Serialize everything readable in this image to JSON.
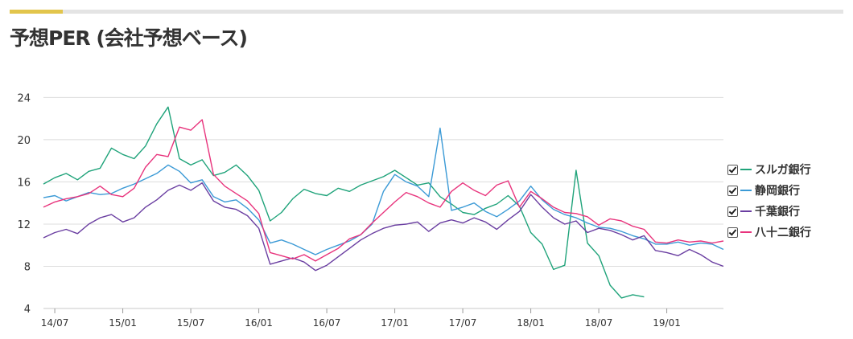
{
  "title": "予想PER (会社予想ベース)",
  "chart_data": {
    "type": "line",
    "title": "予想PER (会社予想ベース)",
    "x_start": "2014-06",
    "x_end": "2019-06",
    "x_ticks": [
      "14/07",
      "15/01",
      "15/07",
      "16/01",
      "16/07",
      "17/01",
      "17/07",
      "18/01",
      "18/07",
      "19/01"
    ],
    "y_ticks": [
      4,
      8,
      12,
      16,
      20,
      24
    ],
    "ylim": [
      4,
      27
    ],
    "grid": "horizontal",
    "legend_position": "right",
    "series": [
      {
        "name": "スルガ銀行",
        "color": "#1fa37a",
        "points": [
          [
            "2014-06",
            15.8
          ],
          [
            "2014-07",
            16.4
          ],
          [
            "2014-08",
            16.8
          ],
          [
            "2014-09",
            16.2
          ],
          [
            "2014-10",
            17.0
          ],
          [
            "2014-11",
            17.3
          ],
          [
            "2014-12",
            19.2
          ],
          [
            "2015-01",
            18.6
          ],
          [
            "2015-02",
            18.2
          ],
          [
            "2015-03",
            19.4
          ],
          [
            "2015-04",
            21.5
          ],
          [
            "2015-05",
            23.1
          ],
          [
            "2015-06",
            18.2
          ],
          [
            "2015-07",
            17.6
          ],
          [
            "2015-08",
            18.1
          ],
          [
            "2015-09",
            16.6
          ],
          [
            "2015-10",
            16.9
          ],
          [
            "2015-11",
            17.6
          ],
          [
            "2015-12",
            16.6
          ],
          [
            "2016-01",
            15.2
          ],
          [
            "2016-02",
            12.3
          ],
          [
            "2016-03",
            13.1
          ],
          [
            "2016-04",
            14.4
          ],
          [
            "2016-05",
            15.3
          ],
          [
            "2016-06",
            14.9
          ],
          [
            "2016-07",
            14.7
          ],
          [
            "2016-08",
            15.4
          ],
          [
            "2016-09",
            15.1
          ],
          [
            "2016-10",
            15.7
          ],
          [
            "2016-11",
            16.1
          ],
          [
            "2016-12",
            16.5
          ],
          [
            "2017-01",
            17.1
          ],
          [
            "2017-02",
            16.4
          ],
          [
            "2017-03",
            15.7
          ],
          [
            "2017-04",
            15.9
          ],
          [
            "2017-05",
            14.6
          ],
          [
            "2017-06",
            13.9
          ],
          [
            "2017-07",
            13.1
          ],
          [
            "2017-08",
            12.9
          ],
          [
            "2017-09",
            13.5
          ],
          [
            "2017-10",
            13.9
          ],
          [
            "2017-11",
            14.7
          ],
          [
            "2017-12",
            13.7
          ],
          [
            "2018-01",
            11.2
          ],
          [
            "2018-02",
            10.1
          ],
          [
            "2018-03",
            7.7
          ],
          [
            "2018-04",
            8.1
          ],
          [
            "2018-05",
            17.1
          ],
          [
            "2018-06",
            10.2
          ],
          [
            "2018-07",
            9.0
          ],
          [
            "2018-08",
            6.2
          ],
          [
            "2018-09",
            5.0
          ],
          [
            "2018-10",
            5.3
          ],
          [
            "2018-11",
            5.1
          ]
        ]
      },
      {
        "name": "静岡銀行",
        "color": "#3b9ad6",
        "points": [
          [
            "2014-06",
            14.5
          ],
          [
            "2014-07",
            14.7
          ],
          [
            "2014-08",
            14.2
          ],
          [
            "2014-09",
            14.6
          ],
          [
            "2014-10",
            15.0
          ],
          [
            "2014-11",
            14.8
          ],
          [
            "2014-12",
            14.9
          ],
          [
            "2015-01",
            15.4
          ],
          [
            "2015-02",
            15.8
          ],
          [
            "2015-03",
            16.3
          ],
          [
            "2015-04",
            16.8
          ],
          [
            "2015-05",
            17.6
          ],
          [
            "2015-06",
            17.0
          ],
          [
            "2015-07",
            15.9
          ],
          [
            "2015-08",
            16.2
          ],
          [
            "2015-09",
            14.6
          ],
          [
            "2015-10",
            14.1
          ],
          [
            "2015-11",
            14.3
          ],
          [
            "2015-12",
            13.5
          ],
          [
            "2016-01",
            12.4
          ],
          [
            "2016-02",
            10.2
          ],
          [
            "2016-03",
            10.5
          ],
          [
            "2016-04",
            10.1
          ],
          [
            "2016-05",
            9.6
          ],
          [
            "2016-06",
            9.1
          ],
          [
            "2016-07",
            9.6
          ],
          [
            "2016-08",
            10.0
          ],
          [
            "2016-09",
            10.4
          ],
          [
            "2016-10",
            11.0
          ],
          [
            "2016-11",
            12.0
          ],
          [
            "2016-12",
            15.1
          ],
          [
            "2017-01",
            16.7
          ],
          [
            "2017-02",
            16.0
          ],
          [
            "2017-03",
            15.6
          ],
          [
            "2017-04",
            14.6
          ],
          [
            "2017-05",
            21.1
          ],
          [
            "2017-06",
            13.3
          ],
          [
            "2017-07",
            13.6
          ],
          [
            "2017-08",
            14.0
          ],
          [
            "2017-09",
            13.2
          ],
          [
            "2017-10",
            12.7
          ],
          [
            "2017-11",
            13.4
          ],
          [
            "2017-12",
            14.2
          ],
          [
            "2018-01",
            15.6
          ],
          [
            "2018-02",
            14.3
          ],
          [
            "2018-03",
            13.4
          ],
          [
            "2018-04",
            12.9
          ],
          [
            "2018-05",
            12.6
          ],
          [
            "2018-06",
            12.1
          ],
          [
            "2018-07",
            11.7
          ],
          [
            "2018-08",
            11.6
          ],
          [
            "2018-09",
            11.3
          ],
          [
            "2018-10",
            10.9
          ],
          [
            "2018-11",
            10.6
          ],
          [
            "2018-12",
            10.1
          ],
          [
            "2019-01",
            10.1
          ],
          [
            "2019-02",
            10.3
          ],
          [
            "2019-03",
            10.0
          ],
          [
            "2019-04",
            10.2
          ],
          [
            "2019-05",
            10.1
          ],
          [
            "2019-06",
            9.6
          ]
        ]
      },
      {
        "name": "千葉銀行",
        "color": "#6a3ea1",
        "points": [
          [
            "2014-06",
            10.7
          ],
          [
            "2014-07",
            11.2
          ],
          [
            "2014-08",
            11.5
          ],
          [
            "2014-09",
            11.1
          ],
          [
            "2014-10",
            12.0
          ],
          [
            "2014-11",
            12.6
          ],
          [
            "2014-12",
            12.9
          ],
          [
            "2015-01",
            12.2
          ],
          [
            "2015-02",
            12.6
          ],
          [
            "2015-03",
            13.6
          ],
          [
            "2015-04",
            14.3
          ],
          [
            "2015-05",
            15.2
          ],
          [
            "2015-06",
            15.7
          ],
          [
            "2015-07",
            15.2
          ],
          [
            "2015-08",
            15.9
          ],
          [
            "2015-09",
            14.2
          ],
          [
            "2015-10",
            13.6
          ],
          [
            "2015-11",
            13.4
          ],
          [
            "2015-12",
            12.8
          ],
          [
            "2016-01",
            11.6
          ],
          [
            "2016-02",
            8.2
          ],
          [
            "2016-03",
            8.5
          ],
          [
            "2016-04",
            8.8
          ],
          [
            "2016-05",
            8.4
          ],
          [
            "2016-06",
            7.6
          ],
          [
            "2016-07",
            8.1
          ],
          [
            "2016-08",
            8.9
          ],
          [
            "2016-09",
            9.7
          ],
          [
            "2016-10",
            10.5
          ],
          [
            "2016-11",
            11.1
          ],
          [
            "2016-12",
            11.6
          ],
          [
            "2017-01",
            11.9
          ],
          [
            "2017-02",
            12.0
          ],
          [
            "2017-03",
            12.2
          ],
          [
            "2017-04",
            11.3
          ],
          [
            "2017-05",
            12.1
          ],
          [
            "2017-06",
            12.4
          ],
          [
            "2017-07",
            12.1
          ],
          [
            "2017-08",
            12.6
          ],
          [
            "2017-09",
            12.2
          ],
          [
            "2017-10",
            11.5
          ],
          [
            "2017-11",
            12.4
          ],
          [
            "2017-12",
            13.2
          ],
          [
            "2018-01",
            14.8
          ],
          [
            "2018-02",
            13.6
          ],
          [
            "2018-03",
            12.6
          ],
          [
            "2018-04",
            12.0
          ],
          [
            "2018-05",
            12.3
          ],
          [
            "2018-06",
            11.2
          ],
          [
            "2018-07",
            11.6
          ],
          [
            "2018-08",
            11.4
          ],
          [
            "2018-09",
            11.0
          ],
          [
            "2018-10",
            10.5
          ],
          [
            "2018-11",
            10.9
          ],
          [
            "2018-12",
            9.5
          ],
          [
            "2019-01",
            9.3
          ],
          [
            "2019-02",
            9.0
          ],
          [
            "2019-03",
            9.6
          ],
          [
            "2019-04",
            9.1
          ],
          [
            "2019-05",
            8.4
          ],
          [
            "2019-06",
            8.0
          ]
        ]
      },
      {
        "name": "八十二銀行",
        "color": "#e8337c",
        "points": [
          [
            "2014-06",
            13.6
          ],
          [
            "2014-07",
            14.1
          ],
          [
            "2014-08",
            14.4
          ],
          [
            "2014-09",
            14.6
          ],
          [
            "2014-10",
            14.9
          ],
          [
            "2014-11",
            15.6
          ],
          [
            "2014-12",
            14.8
          ],
          [
            "2015-01",
            14.6
          ],
          [
            "2015-02",
            15.4
          ],
          [
            "2015-03",
            17.4
          ],
          [
            "2015-04",
            18.6
          ],
          [
            "2015-05",
            18.4
          ],
          [
            "2015-06",
            21.2
          ],
          [
            "2015-07",
            20.9
          ],
          [
            "2015-08",
            21.9
          ],
          [
            "2015-09",
            16.7
          ],
          [
            "2015-10",
            15.6
          ],
          [
            "2015-11",
            14.9
          ],
          [
            "2015-12",
            14.2
          ],
          [
            "2016-01",
            13.0
          ],
          [
            "2016-02",
            9.3
          ],
          [
            "2016-03",
            9.0
          ],
          [
            "2016-04",
            8.7
          ],
          [
            "2016-05",
            9.1
          ],
          [
            "2016-06",
            8.5
          ],
          [
            "2016-07",
            9.1
          ],
          [
            "2016-08",
            9.7
          ],
          [
            "2016-09",
            10.6
          ],
          [
            "2016-10",
            11.0
          ],
          [
            "2016-11",
            12.1
          ],
          [
            "2016-12",
            13.1
          ],
          [
            "2017-01",
            14.1
          ],
          [
            "2017-02",
            15.0
          ],
          [
            "2017-03",
            14.6
          ],
          [
            "2017-04",
            14.0
          ],
          [
            "2017-05",
            13.6
          ],
          [
            "2017-06",
            15.1
          ],
          [
            "2017-07",
            15.9
          ],
          [
            "2017-08",
            15.2
          ],
          [
            "2017-09",
            14.7
          ],
          [
            "2017-10",
            15.7
          ],
          [
            "2017-11",
            16.1
          ],
          [
            "2017-12",
            13.6
          ],
          [
            "2018-01",
            15.1
          ],
          [
            "2018-02",
            14.4
          ],
          [
            "2018-03",
            13.6
          ],
          [
            "2018-04",
            13.1
          ],
          [
            "2018-05",
            13.0
          ],
          [
            "2018-06",
            12.7
          ],
          [
            "2018-07",
            11.9
          ],
          [
            "2018-08",
            12.5
          ],
          [
            "2018-09",
            12.3
          ],
          [
            "2018-10",
            11.8
          ],
          [
            "2018-11",
            11.5
          ],
          [
            "2018-12",
            10.3
          ],
          [
            "2019-01",
            10.2
          ],
          [
            "2019-02",
            10.5
          ],
          [
            "2019-03",
            10.3
          ],
          [
            "2019-04",
            10.4
          ],
          [
            "2019-05",
            10.2
          ],
          [
            "2019-06",
            10.4
          ]
        ]
      }
    ]
  }
}
